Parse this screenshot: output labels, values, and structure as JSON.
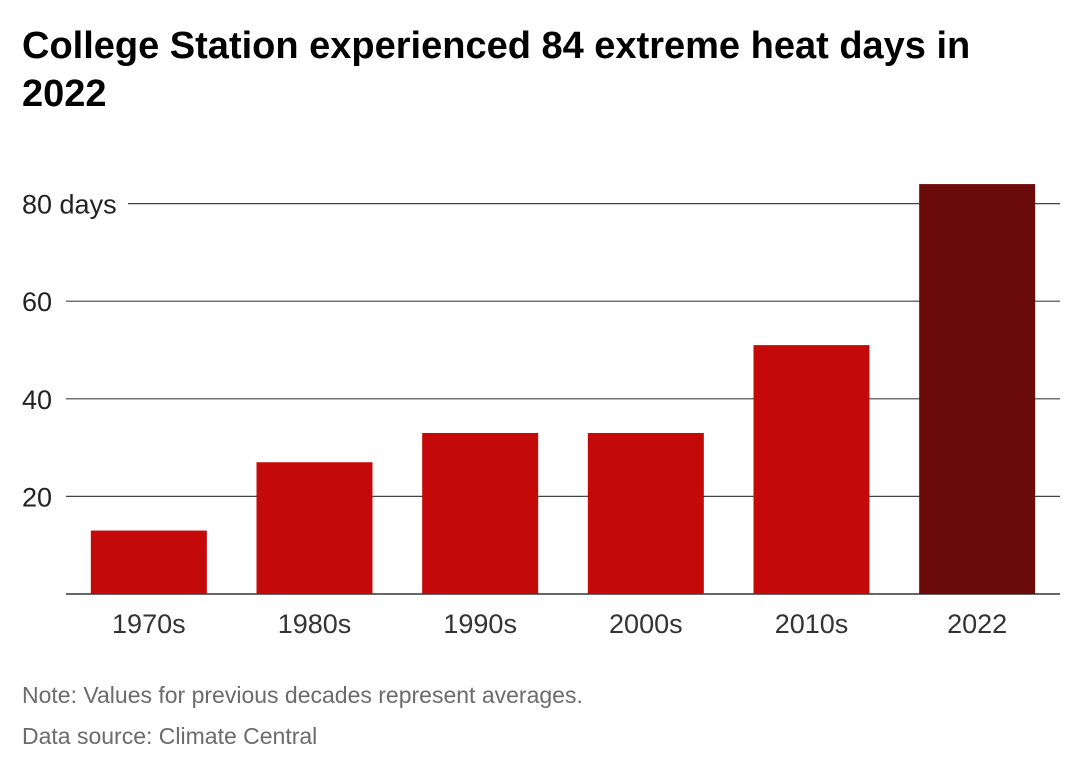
{
  "chart_data": {
    "type": "bar",
    "title": "College Station experienced 84 extreme heat days in 2022",
    "categories": [
      "1970s",
      "1980s",
      "1990s",
      "2000s",
      "2010s",
      "2022"
    ],
    "values": [
      13,
      27,
      33,
      33,
      51,
      84
    ],
    "ylim": [
      0,
      88
    ],
    "yticks": [
      20,
      40,
      60,
      80
    ],
    "ytick_labels": [
      "20",
      "40",
      "60",
      "80 days"
    ],
    "grid": true,
    "colors": {
      "bar": "#c40a08",
      "highlight_bar": "#6a0a0b",
      "gridline": "#444444"
    },
    "highlight_index": 5
  },
  "footer": {
    "note": "Note: Values for previous decades represent averages.",
    "source": "Data source: Climate Central"
  }
}
